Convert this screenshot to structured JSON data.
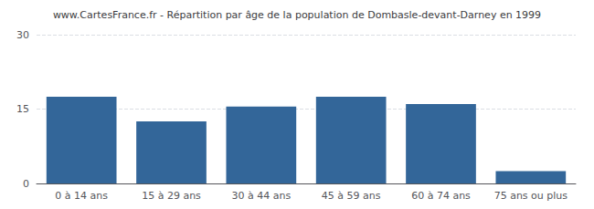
{
  "chart_data": {
    "type": "bar",
    "title": "www.CartesFrance.fr - Répartition par âge de la population de Dombasle-devant-Darney en 1999",
    "categories": [
      "0 à 14 ans",
      "15 à 29 ans",
      "30 à 44 ans",
      "45 à 59 ans",
      "60 à 74 ans",
      "75 ans ou plus"
    ],
    "values": [
      17.5,
      12.5,
      15.5,
      17.5,
      16.0,
      2.5
    ],
    "color": "#336699",
    "ylim": [
      0,
      30
    ],
    "yticks": [
      0,
      15,
      30
    ],
    "grid": true
  }
}
